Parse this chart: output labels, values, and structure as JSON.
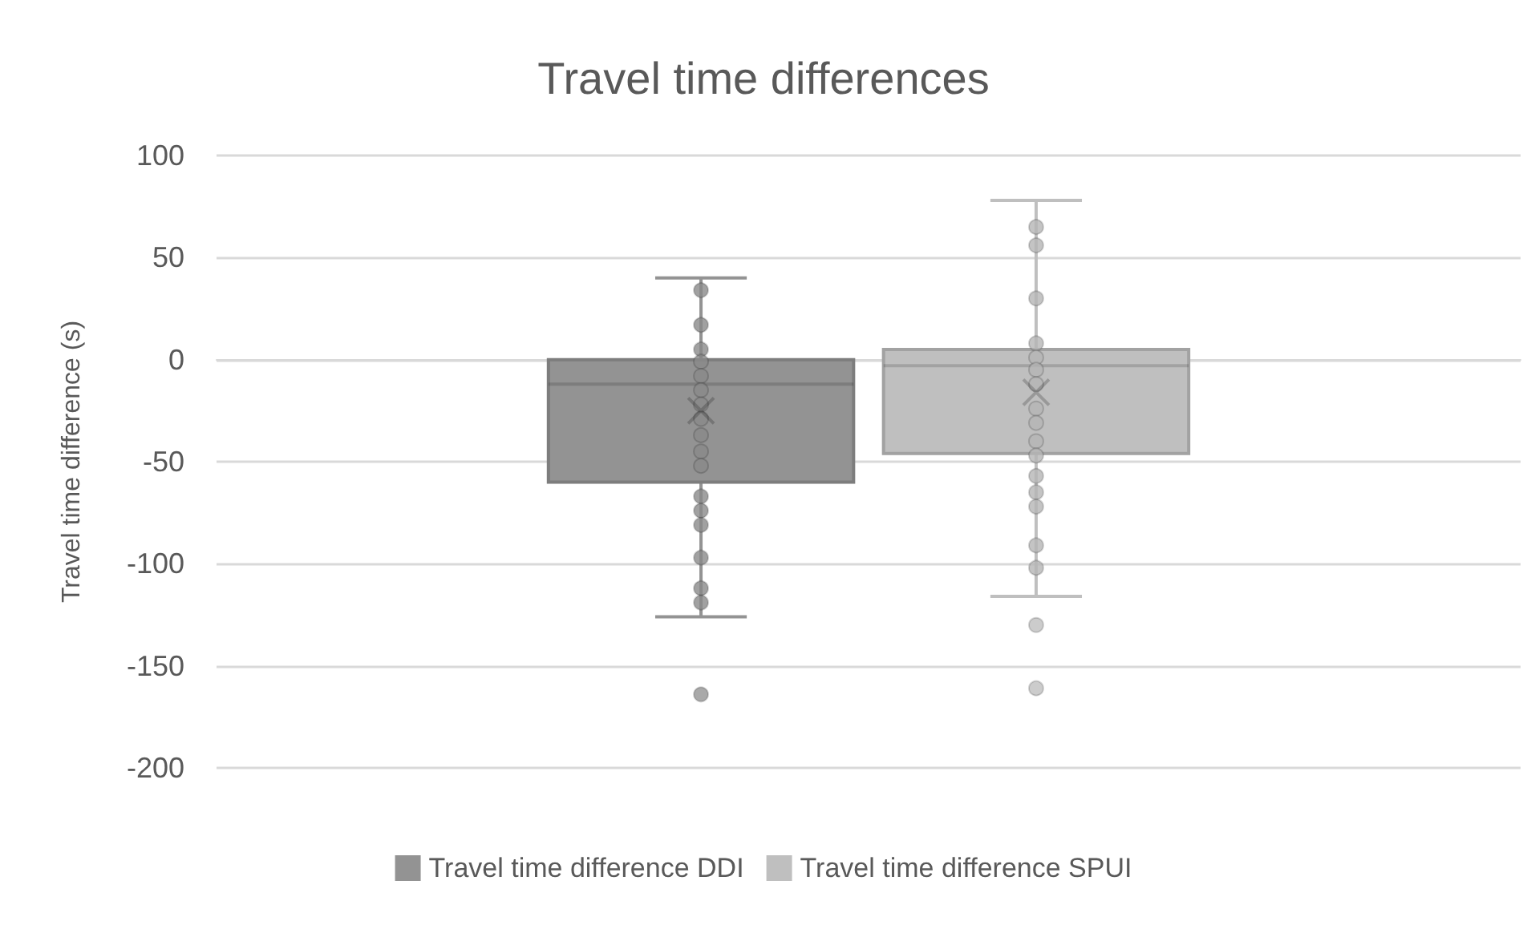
{
  "chart_data": {
    "type": "box",
    "title": "Travel time differences",
    "ylabel": "Travel time difference (s)",
    "categories": [
      null
    ],
    "series": [
      {
        "name": "Travel time difference DDI",
        "color": "#939393",
        "boxes": [
          {
            "low": -126,
            "q1": -60,
            "median": -12,
            "q3": 0,
            "high": 40,
            "mean": -25,
            "outliers": [
              -164
            ]
          }
        ]
      },
      {
        "name": "Travel time difference SPUI",
        "color": "#bfbfbf",
        "boxes": [
          {
            "low": -116,
            "q1": -46,
            "median": -3,
            "q3": 5,
            "high": 78,
            "mean": -16,
            "outliers": [
              -130,
              -161
            ]
          }
        ]
      },
      {
        "type": "scatter",
        "color": "#8a8a8a",
        "x": [
          null,
          null,
          null,
          null,
          null,
          null,
          null,
          null,
          null,
          null,
          null,
          null,
          null,
          null,
          null,
          null,
          null
        ],
        "values": [
          34,
          17,
          5,
          -1,
          -8,
          -15,
          -22,
          -29,
          -37,
          -45,
          -52,
          -67,
          -74,
          -81,
          -97,
          -112,
          -119
        ]
      },
      {
        "type": "scatter",
        "color": "#b5b5b5",
        "x": [
          null,
          null,
          null,
          null,
          null,
          null,
          null,
          null,
          null,
          null,
          null,
          null,
          null,
          null,
          null,
          null
        ],
        "values": [
          65,
          56,
          30,
          8,
          1,
          -5,
          -12,
          -24,
          -31,
          -40,
          -47,
          -57,
          -65,
          -72,
          -91,
          -102
        ]
      }
    ],
    "ylim": [
      -200,
      100
    ],
    "yticks": [
      -200,
      -150,
      -100,
      -50,
      0,
      50,
      100
    ],
    "grid": "y",
    "legend": "bottom",
    "marker": "circle"
  }
}
